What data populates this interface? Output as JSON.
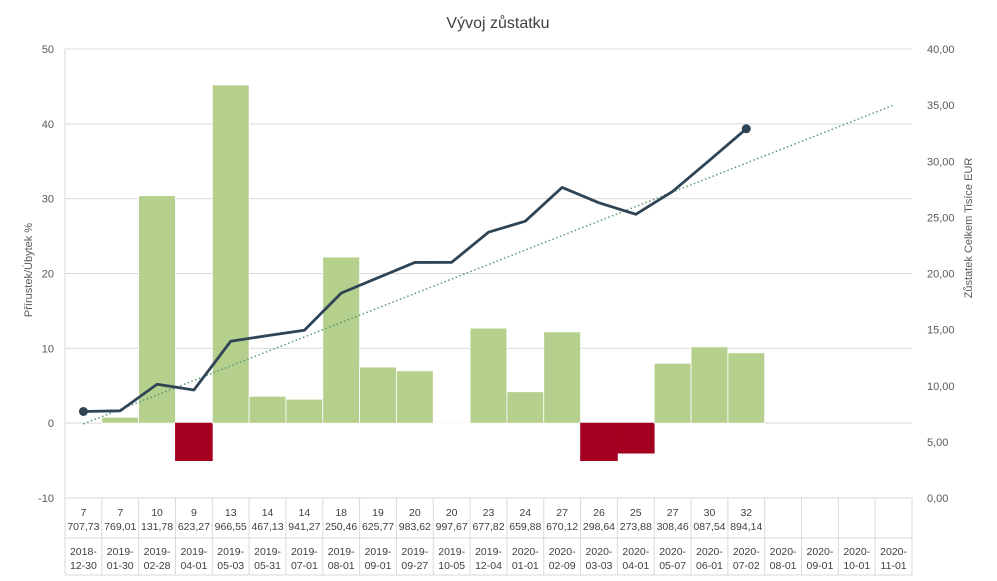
{
  "chart_data": {
    "type": "bar",
    "title": "Vývoj zůstatku",
    "ylabel": "Přírustek/Úbytek %",
    "y2label": "Zůstatek Celkem  Tisíce EUR",
    "ylim": [
      -10,
      50
    ],
    "y2lim": [
      0,
      40
    ],
    "yticks": [
      "-10",
      "0",
      "10",
      "20",
      "30",
      "40",
      "50"
    ],
    "y2ticks": [
      "0,00",
      "5,00",
      "10,00",
      "15,00",
      "20,00",
      "25,00",
      "30,00",
      "35,00",
      "40,00"
    ],
    "grid": true,
    "categories": [
      "2018-12-30",
      "2019-01-30",
      "2019-02-28",
      "2019-04-01",
      "2019-05-03",
      "2019-05-31",
      "2019-07-01",
      "2019-08-01",
      "2019-09-01",
      "2019-09-27",
      "2019-10-05",
      "2019-12-04",
      "2020-01-01",
      "2020-02-09",
      "2020-03-03",
      "2020-04-01",
      "2020-05-07",
      "2020-06-01",
      "2020-07-02",
      "2020-08-01",
      "2020-09-01",
      "2020-10-01",
      "2020-11-01"
    ],
    "balance_labels": [
      [
        "7",
        "707,73"
      ],
      [
        "7",
        "769,01"
      ],
      [
        "10",
        "131,78"
      ],
      [
        "9",
        "623,27"
      ],
      [
        "13",
        "966,55"
      ],
      [
        "14",
        "467,13"
      ],
      [
        "14",
        "941,27"
      ],
      [
        "18",
        "250,46"
      ],
      [
        "19",
        "625,77"
      ],
      [
        "20",
        "983,62"
      ],
      [
        "20",
        "997,67"
      ],
      [
        "23",
        "677,82"
      ],
      [
        "24",
        "659,88"
      ],
      [
        "27",
        "670,12"
      ],
      [
        "26",
        "298,64"
      ],
      [
        "25",
        "273,88"
      ],
      [
        "27",
        "308,46"
      ],
      [
        "30",
        "087,54"
      ],
      [
        "32",
        "894,14"
      ],
      [
        "",
        ""
      ],
      [
        "",
        ""
      ],
      [
        "",
        ""
      ],
      [
        "",
        ""
      ]
    ],
    "series": [
      {
        "kind": "bar",
        "axis": "left",
        "values": [
          null,
          0.8,
          30.4,
          -5.0,
          45.2,
          3.6,
          3.2,
          22.2,
          7.5,
          7.0,
          0.0,
          12.7,
          4.2,
          12.2,
          -5.0,
          -4.0,
          8.0,
          10.2,
          9.4,
          null,
          null,
          null,
          null
        ],
        "positive_color": "#b5cf8d",
        "negative_color": "#a50021"
      },
      {
        "kind": "line",
        "axis": "right",
        "values": [
          7.70773,
          7.76901,
          10.13178,
          9.62327,
          13.96655,
          14.46713,
          14.94127,
          18.25046,
          19.62577,
          20.98362,
          20.99767,
          23.67782,
          24.65988,
          27.67012,
          26.29864,
          25.27388,
          27.30846,
          30.08754,
          32.89414,
          null,
          null,
          null,
          null
        ],
        "color": "#2f4556"
      },
      {
        "kind": "trendline",
        "axis": "right",
        "start": [
          0,
          6.6
        ],
        "end": [
          22,
          35.0
        ],
        "color": "#5a9a78"
      }
    ]
  }
}
